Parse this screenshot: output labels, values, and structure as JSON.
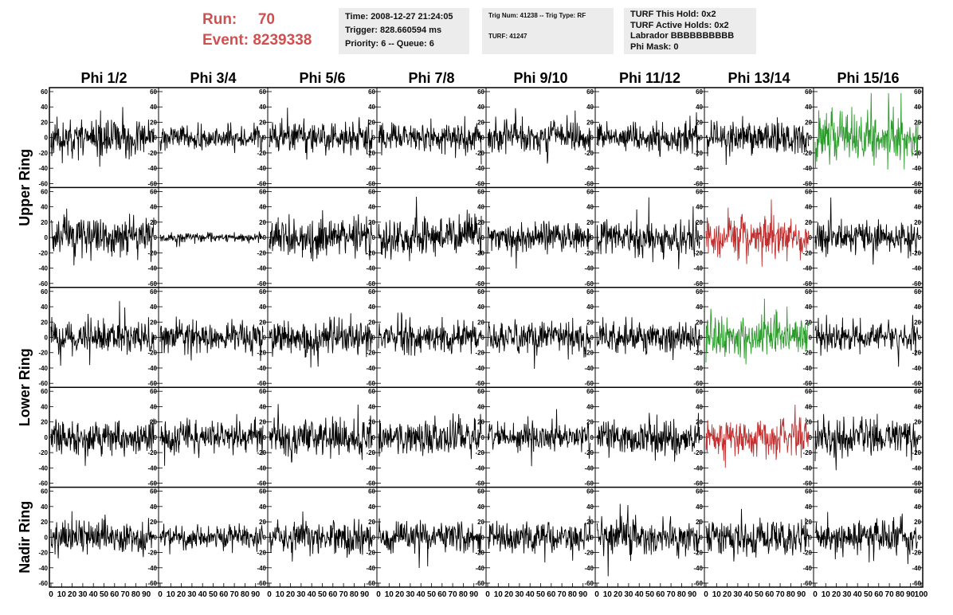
{
  "header": {
    "run_label": "Run:",
    "run_value": "70",
    "event_label": "Event:",
    "event_value": "8239338",
    "box1": [
      "Time: 2008-12-27 21:24:05",
      "Trigger: 828.660594 ms",
      "Priority: 6 -- Queue: 6"
    ],
    "box2": [
      "Trig Num: 41238 -- Trig Type: RF",
      "TURF: 41247"
    ],
    "box3": [
      "TURF This Hold: 0x2",
      "TURF Active Holds: 0x2",
      "Labrador BBBBBBBBBB",
      "Phi Mask: 0"
    ]
  },
  "colors": {
    "header_red": "#d05050",
    "box_bg": "#ececec",
    "trace_default": "#000000",
    "trace_green": "#2a9a2a",
    "trace_red": "#c03030"
  },
  "chart_data": {
    "type": "line",
    "columns": [
      "Phi 1/2",
      "Phi 3/4",
      "Phi 5/6",
      "Phi 7/8",
      "Phi 9/10",
      "Phi 11/12",
      "Phi 13/14",
      "Phi 15/16"
    ],
    "ring_labels": [
      "Upper Ring",
      "Lower Ring",
      "Nadir Ring"
    ],
    "ring_rows": [
      [
        0,
        1
      ],
      [
        2,
        3
      ],
      [
        4
      ]
    ],
    "rows": 5,
    "ylim": [
      -60,
      60
    ],
    "xlim": [
      0,
      100
    ],
    "y_ticks": [
      "60",
      "40",
      "20",
      "0",
      "-20",
      "-40",
      "-60"
    ],
    "x_ticks": [
      "0",
      "10",
      "20",
      "30",
      "40",
      "50",
      "60",
      "70",
      "80",
      "90",
      "100"
    ],
    "n_samples": 256,
    "amplitudes": [
      [
        15,
        10,
        14,
        13,
        14,
        12,
        14,
        22
      ],
      [
        15,
        4,
        15,
        15,
        13,
        15,
        17,
        14
      ],
      [
        14,
        13,
        15,
        13,
        14,
        13,
        18,
        12
      ],
      [
        13,
        13,
        15,
        15,
        12,
        15,
        15,
        16
      ],
      [
        14,
        10,
        14,
        12,
        13,
        14,
        14,
        14
      ]
    ],
    "highlights": [
      {
        "row": 0,
        "col": 7,
        "color": "green"
      },
      {
        "row": 1,
        "col": 6,
        "color": "red"
      },
      {
        "row": 2,
        "col": 6,
        "color": "green"
      },
      {
        "row": 3,
        "col": 6,
        "color": "red"
      }
    ]
  }
}
